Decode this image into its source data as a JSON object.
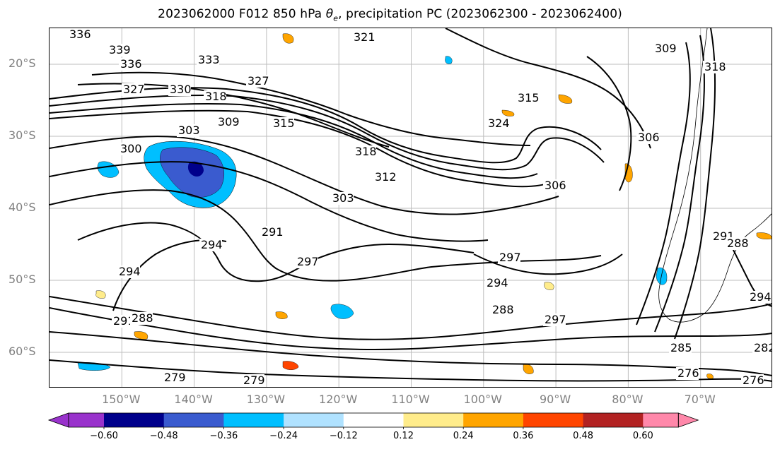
{
  "title": {
    "prefix": "2023062000 F012 850 hPa ",
    "theta": "θ",
    "theta_sub": "e",
    "suffix": ", precipitation PC (2023062300 - 2023062400)"
  },
  "map": {
    "lat_labels": [
      "20°S",
      "30°S",
      "40°S",
      "50°S",
      "60°S"
    ],
    "lat_values": [
      -20,
      -30,
      -40,
      -50,
      -60
    ],
    "lon_labels": [
      "150°W",
      "140°W",
      "130°W",
      "120°W",
      "110°W",
      "100°W",
      "90°W",
      "80°W",
      "70°W"
    ],
    "lon_values": [
      -150,
      -140,
      -130,
      -120,
      -110,
      -100,
      -90,
      -80,
      -70
    ],
    "extent": {
      "lon_min": -160,
      "lon_max": -60,
      "lat_min": -65,
      "lat_max": -15
    },
    "gridlines": true,
    "contour_labels": [
      "336",
      "339",
      "336",
      "333",
      "327",
      "330",
      "318",
      "327",
      "321",
      "309",
      "315",
      "324",
      "315",
      "309",
      "303",
      "300",
      "318",
      "312",
      "306",
      "306",
      "303",
      "291",
      "294",
      "297",
      "297",
      "294",
      "294",
      "288",
      "291",
      "288",
      "297",
      "285",
      "282",
      "294",
      "279",
      "279",
      "276",
      "276",
      "291",
      "288",
      "318"
    ]
  },
  "colorbar": {
    "colors": [
      "#9932cc",
      "#00008b",
      "#3a5bcf",
      "#00bfff",
      "#b0e2ff",
      "#ffffff",
      "#ffec8b",
      "#ffa500",
      "#ff4500",
      "#b22222",
      "#ff88aa"
    ],
    "tick_labels": [
      "−0.60",
      "−0.48",
      "−0.36",
      "−0.24",
      "−0.12",
      "0.12",
      "0.24",
      "0.36",
      "0.48",
      "0.60"
    ],
    "ticks": [
      -0.6,
      -0.48,
      -0.36,
      -0.24,
      -0.12,
      0.12,
      0.24,
      0.36,
      0.48,
      0.6
    ]
  },
  "colors": {
    "contour": "#000000",
    "grid": "#bdbdbd",
    "axis_label": "#808080"
  }
}
